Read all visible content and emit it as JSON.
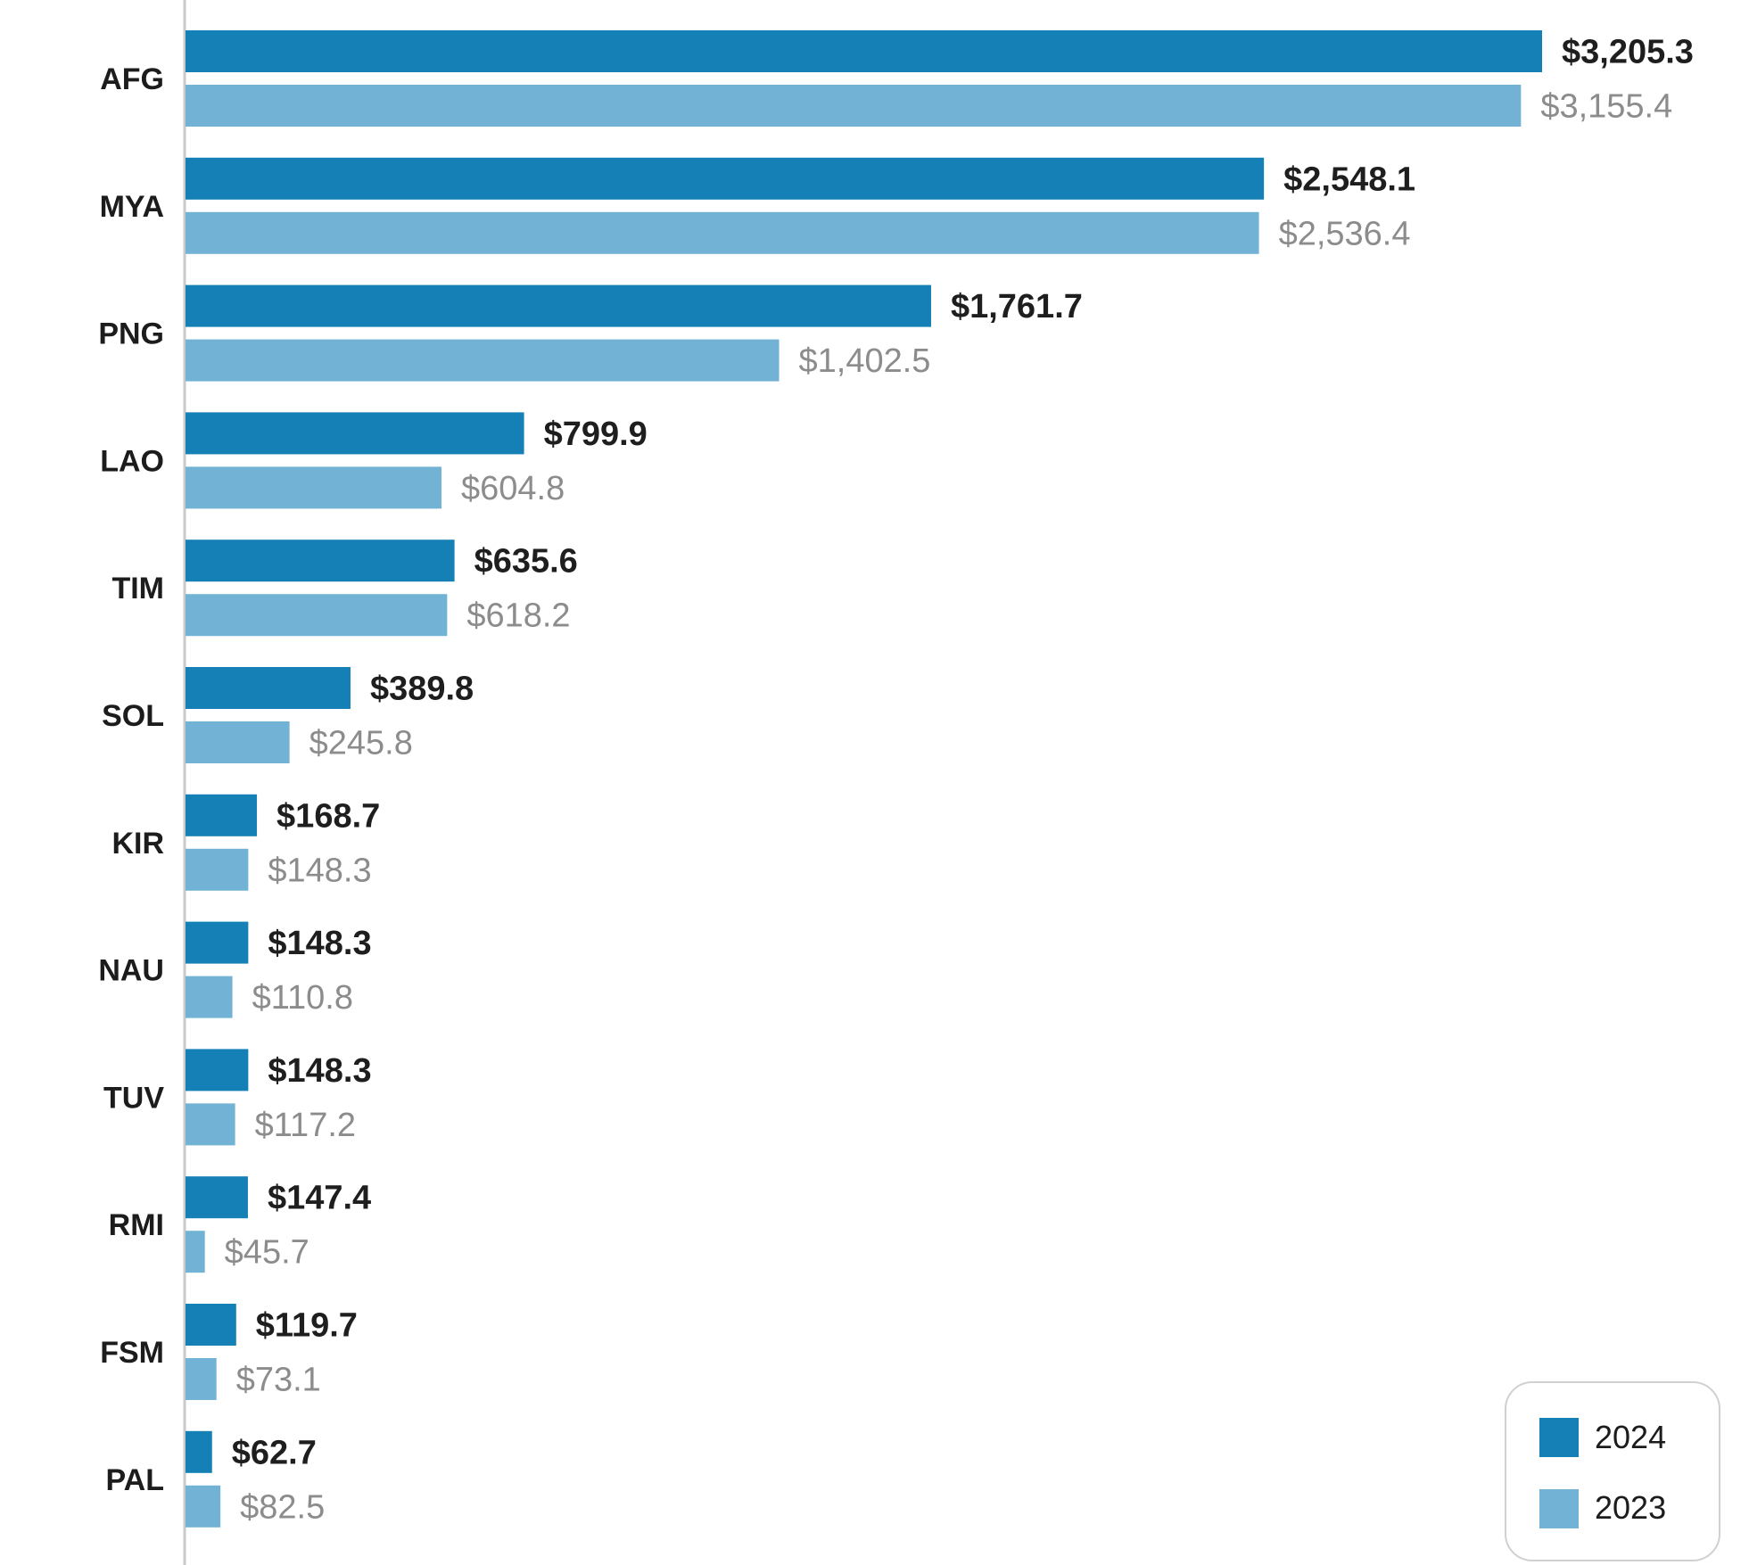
{
  "chart_data": {
    "type": "bar",
    "orientation": "horizontal",
    "title": "",
    "xlabel": "",
    "ylabel": "",
    "xlim": [
      0,
      3205.3
    ],
    "grid": false,
    "legend_position": "bottom-right",
    "categories": [
      "AFG",
      "MYA",
      "PNG",
      "LAO",
      "TIM",
      "SOL",
      "KIR",
      "NAU",
      "TUV",
      "RMI",
      "FSM",
      "PAL"
    ],
    "series": [
      {
        "name": "2024",
        "color": "#1580b5",
        "values": [
          3205.3,
          2548.1,
          1761.7,
          799.9,
          635.6,
          389.8,
          168.7,
          148.3,
          148.3,
          147.4,
          119.7,
          62.7
        ],
        "labels": [
          "$3,205.3",
          "$2,548.1",
          "$1,761.7",
          "$799.9",
          "$635.6",
          "$389.8",
          "$168.7",
          "$148.3",
          "$148.3",
          "$147.4",
          "$119.7",
          "$62.7"
        ]
      },
      {
        "name": "2023",
        "color": "#72b3d5",
        "values": [
          3155.4,
          2536.4,
          1402.5,
          604.8,
          618.2,
          245.8,
          148.3,
          110.8,
          117.2,
          45.7,
          73.1,
          82.5
        ],
        "labels": [
          "$3,155.4",
          "$2,536.4",
          "$1,402.5",
          "$604.8",
          "$618.2",
          "$245.8",
          "$148.3",
          "$110.8",
          "$117.2",
          "$45.7",
          "$73.1",
          "$82.5"
        ]
      }
    ]
  }
}
